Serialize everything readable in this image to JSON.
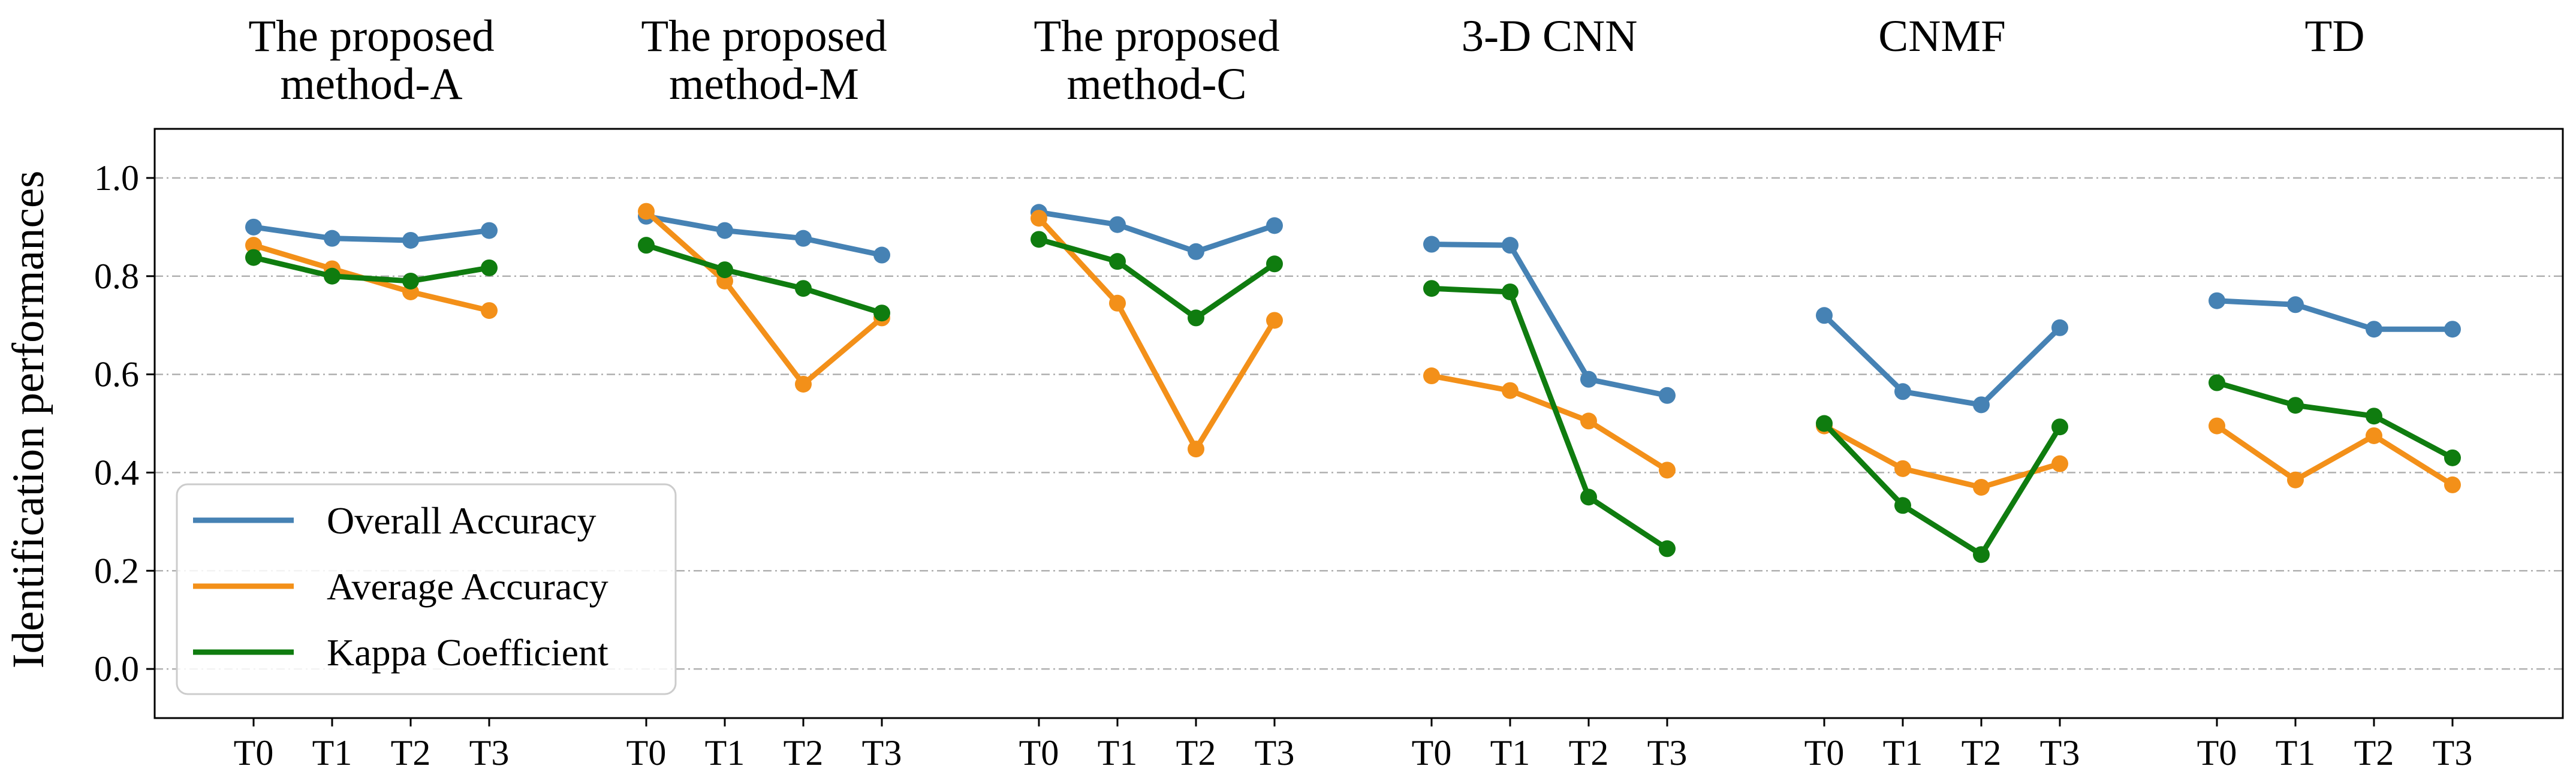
{
  "chart_data": {
    "type": "line",
    "ylabel": "Identification performances",
    "ylim": [
      -0.1,
      1.1
    ],
    "yticks": [
      "0.0",
      "0.2",
      "0.4",
      "0.6",
      "0.8",
      "1.0"
    ],
    "grid": "horizontal dash-dot",
    "legend_position": "bottom-left",
    "x_tick_labels": [
      "T0",
      "T1",
      "T2",
      "T3"
    ],
    "series_meta": [
      {
        "name": "Overall Accuracy",
        "color": "#4682b4"
      },
      {
        "name": "Average Accuracy",
        "color": "#f39019"
      },
      {
        "name": "Kappa Coefficient",
        "color": "#0f7c0f"
      }
    ],
    "groups": [
      {
        "title": [
          "The proposed",
          "method-A"
        ],
        "values": [
          [
            0.9,
            0.877,
            0.873,
            0.893
          ],
          [
            0.863,
            0.815,
            0.768,
            0.73
          ],
          [
            0.838,
            0.8,
            0.79,
            0.817
          ]
        ]
      },
      {
        "title": [
          "The proposed",
          "method-M"
        ],
        "values": [
          [
            0.922,
            0.893,
            0.877,
            0.843
          ],
          [
            0.932,
            0.79,
            0.58,
            0.715
          ],
          [
            0.863,
            0.813,
            0.775,
            0.725
          ]
        ]
      },
      {
        "title": [
          "The proposed",
          "method-C"
        ],
        "values": [
          [
            0.93,
            0.905,
            0.85,
            0.903
          ],
          [
            0.918,
            0.745,
            0.448,
            0.71
          ],
          [
            0.875,
            0.83,
            0.715,
            0.825
          ]
        ]
      },
      {
        "title": [
          "3-D CNN"
        ],
        "values": [
          [
            0.865,
            0.863,
            0.59,
            0.557
          ],
          [
            0.597,
            0.567,
            0.505,
            0.405
          ],
          [
            0.775,
            0.768,
            0.35,
            0.245
          ]
        ]
      },
      {
        "title": [
          "CNMF"
        ],
        "values": [
          [
            0.72,
            0.565,
            0.538,
            0.695
          ],
          [
            0.495,
            0.408,
            0.37,
            0.418
          ],
          [
            0.5,
            0.333,
            0.233,
            0.493
          ]
        ]
      },
      {
        "title": [
          "TD"
        ],
        "values": [
          [
            0.75,
            0.742,
            0.692,
            0.692
          ],
          [
            0.495,
            0.385,
            0.475,
            0.375
          ],
          [
            0.583,
            0.537,
            0.515,
            0.43
          ]
        ]
      }
    ]
  }
}
